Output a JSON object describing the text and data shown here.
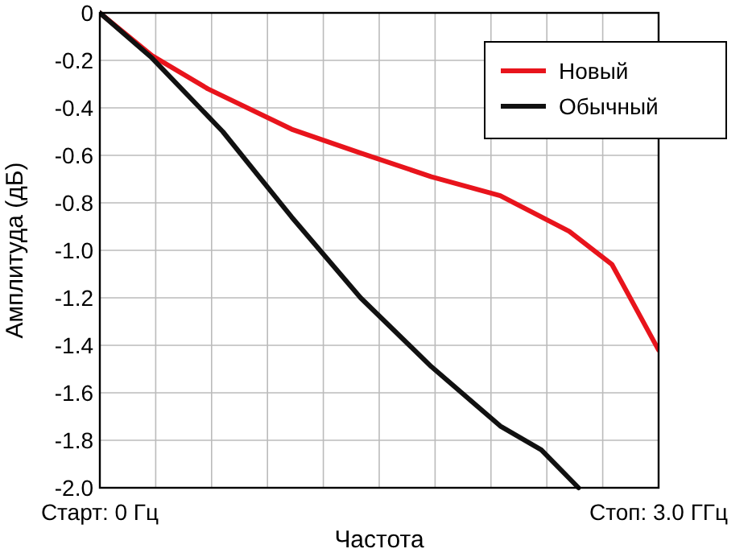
{
  "chart_data": {
    "type": "line",
    "xlabel": "Частота",
    "ylabel": "Амплитуда (дБ)",
    "xlim": [
      0,
      3
    ],
    "xticks": [
      {
        "value": 0,
        "label": "Старт: 0 Гц"
      },
      {
        "value": 0.3,
        "label": null
      },
      {
        "value": 0.6,
        "label": null
      },
      {
        "value": 0.9,
        "label": null
      },
      {
        "value": 1.2,
        "label": null
      },
      {
        "value": 1.5,
        "label": null
      },
      {
        "value": 1.8,
        "label": null
      },
      {
        "value": 2.1,
        "label": null
      },
      {
        "value": 2.4,
        "label": null
      },
      {
        "value": 2.7,
        "label": null
      },
      {
        "value": 3,
        "label": "Стоп: 3.0 ГГц"
      }
    ],
    "ylim": [
      -2,
      0
    ],
    "yticks": [
      {
        "value": 0,
        "label": "0"
      },
      {
        "value": -0.2,
        "label": "-0.2"
      },
      {
        "value": -0.4,
        "label": "-0.4"
      },
      {
        "value": -0.6,
        "label": "-0.6"
      },
      {
        "value": -0.8,
        "label": "-0.8"
      },
      {
        "value": -1,
        "label": "-1.0"
      },
      {
        "value": -1.2,
        "label": "-1.2"
      },
      {
        "value": -1.4,
        "label": "-1.4"
      },
      {
        "value": -1.6,
        "label": "-1.6"
      },
      {
        "value": -1.8,
        "label": "-1.8"
      },
      {
        "value": -2,
        "label": "-2.0"
      }
    ],
    "grid": true,
    "legend": "top right",
    "line_style": "solid",
    "marker": "none",
    "series": [
      {
        "name": "Новый",
        "color": "#e8141c",
        "x": [
          0,
          0.28,
          0.58,
          1.03,
          1.4,
          1.78,
          2.15,
          2.52,
          2.75,
          3
        ],
        "values": [
          0,
          -0.18,
          -0.32,
          -0.49,
          -0.59,
          -0.69,
          -0.77,
          -0.92,
          -1.06,
          -1.42
        ]
      },
      {
        "name": "Обычный",
        "color": "#111111",
        "x": [
          0,
          0.28,
          0.66,
          1.03,
          1.4,
          1.78,
          2.15,
          2.37,
          2.57
        ],
        "values": [
          0,
          -0.19,
          -0.5,
          -0.86,
          -1.2,
          -1.49,
          -1.74,
          -1.84,
          -2
        ]
      }
    ]
  }
}
